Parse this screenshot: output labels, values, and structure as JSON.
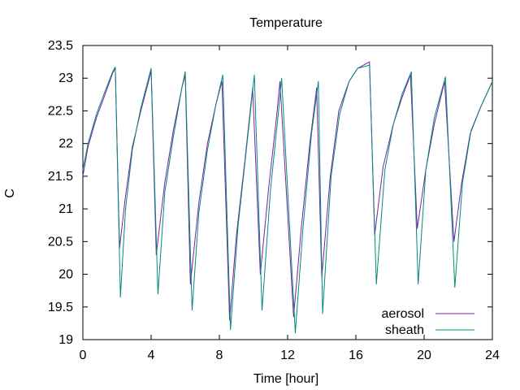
{
  "chart_data": {
    "type": "line",
    "title": "Temperature",
    "xlabel": "Time [hour]",
    "ylabel": "C",
    "xlim": [
      0,
      24
    ],
    "ylim": [
      19,
      23.5
    ],
    "xticks": [
      "0",
      "4",
      "8",
      "12",
      "16",
      "20",
      "24"
    ],
    "yticks": [
      "19",
      "19.5",
      "20",
      "20.5",
      "21",
      "21.5",
      "22",
      "22.5",
      "23",
      "23.5"
    ],
    "grid": false,
    "legend_position": "bottom-right",
    "series": [
      {
        "name": "aerosol",
        "color": "#7b1fa2",
        "points": [
          [
            0.0,
            21.5
          ],
          [
            0.3,
            21.95
          ],
          [
            0.8,
            22.4
          ],
          [
            1.3,
            22.75
          ],
          [
            1.75,
            23.08
          ],
          [
            1.9,
            23.15
          ],
          [
            2.15,
            20.4
          ],
          [
            2.5,
            21.2
          ],
          [
            2.9,
            21.95
          ],
          [
            3.4,
            22.5
          ],
          [
            3.85,
            22.95
          ],
          [
            4.0,
            23.12
          ],
          [
            4.3,
            20.3
          ],
          [
            4.8,
            21.4
          ],
          [
            5.3,
            22.2
          ],
          [
            5.8,
            22.85
          ],
          [
            6.0,
            23.05
          ],
          [
            6.3,
            19.85
          ],
          [
            6.8,
            21.1
          ],
          [
            7.3,
            22.0
          ],
          [
            7.8,
            22.6
          ],
          [
            8.15,
            22.95
          ],
          [
            8.6,
            19.3
          ],
          [
            9.0,
            20.6
          ],
          [
            9.5,
            21.75
          ],
          [
            9.95,
            22.85
          ],
          [
            10.4,
            20.0
          ],
          [
            10.9,
            21.35
          ],
          [
            11.35,
            22.4
          ],
          [
            11.55,
            22.95
          ],
          [
            12.35,
            19.35
          ],
          [
            12.8,
            20.7
          ],
          [
            13.3,
            22.0
          ],
          [
            13.7,
            22.85
          ],
          [
            14.0,
            19.95
          ],
          [
            14.5,
            21.5
          ],
          [
            15.0,
            22.5
          ],
          [
            15.6,
            22.95
          ],
          [
            16.1,
            23.15
          ],
          [
            16.8,
            23.25
          ],
          [
            17.1,
            20.6
          ],
          [
            17.6,
            21.65
          ],
          [
            18.2,
            22.3
          ],
          [
            18.7,
            22.7
          ],
          [
            19.2,
            23.05
          ],
          [
            19.6,
            20.7
          ],
          [
            20.1,
            21.6
          ],
          [
            20.6,
            22.3
          ],
          [
            21.2,
            22.95
          ],
          [
            21.75,
            20.5
          ],
          [
            22.2,
            21.4
          ],
          [
            22.7,
            22.15
          ],
          [
            23.3,
            22.55
          ],
          [
            24.0,
            22.95
          ]
        ]
      },
      {
        "name": "sheath",
        "color": "#00897b",
        "points": [
          [
            0.0,
            21.6
          ],
          [
            0.3,
            22.0
          ],
          [
            0.8,
            22.45
          ],
          [
            1.3,
            22.8
          ],
          [
            1.75,
            23.1
          ],
          [
            1.9,
            23.17
          ],
          [
            2.2,
            19.65
          ],
          [
            2.5,
            21.0
          ],
          [
            2.9,
            21.9
          ],
          [
            3.4,
            22.55
          ],
          [
            3.85,
            23.0
          ],
          [
            4.0,
            23.15
          ],
          [
            4.4,
            19.7
          ],
          [
            4.8,
            21.25
          ],
          [
            5.3,
            22.1
          ],
          [
            5.8,
            22.85
          ],
          [
            6.0,
            23.1
          ],
          [
            6.4,
            19.45
          ],
          [
            6.8,
            20.95
          ],
          [
            7.3,
            21.9
          ],
          [
            7.8,
            22.6
          ],
          [
            8.2,
            23.05
          ],
          [
            8.65,
            19.15
          ],
          [
            9.1,
            20.75
          ],
          [
            9.6,
            21.95
          ],
          [
            10.05,
            23.05
          ],
          [
            10.5,
            19.45
          ],
          [
            11.0,
            21.3
          ],
          [
            11.45,
            22.45
          ],
          [
            11.65,
            23.0
          ],
          [
            12.45,
            19.1
          ],
          [
            12.9,
            20.7
          ],
          [
            13.4,
            22.15
          ],
          [
            13.8,
            22.95
          ],
          [
            14.05,
            19.4
          ],
          [
            14.55,
            21.5
          ],
          [
            15.05,
            22.45
          ],
          [
            15.6,
            22.95
          ],
          [
            16.1,
            23.15
          ],
          [
            16.8,
            23.2
          ],
          [
            17.2,
            19.85
          ],
          [
            17.7,
            21.6
          ],
          [
            18.2,
            22.3
          ],
          [
            18.7,
            22.75
          ],
          [
            19.25,
            23.1
          ],
          [
            19.65,
            19.85
          ],
          [
            20.1,
            21.6
          ],
          [
            20.6,
            22.4
          ],
          [
            21.25,
            23.02
          ],
          [
            21.8,
            19.8
          ],
          [
            22.25,
            21.4
          ],
          [
            22.75,
            22.2
          ],
          [
            23.3,
            22.55
          ],
          [
            24.0,
            22.95
          ]
        ]
      }
    ]
  }
}
